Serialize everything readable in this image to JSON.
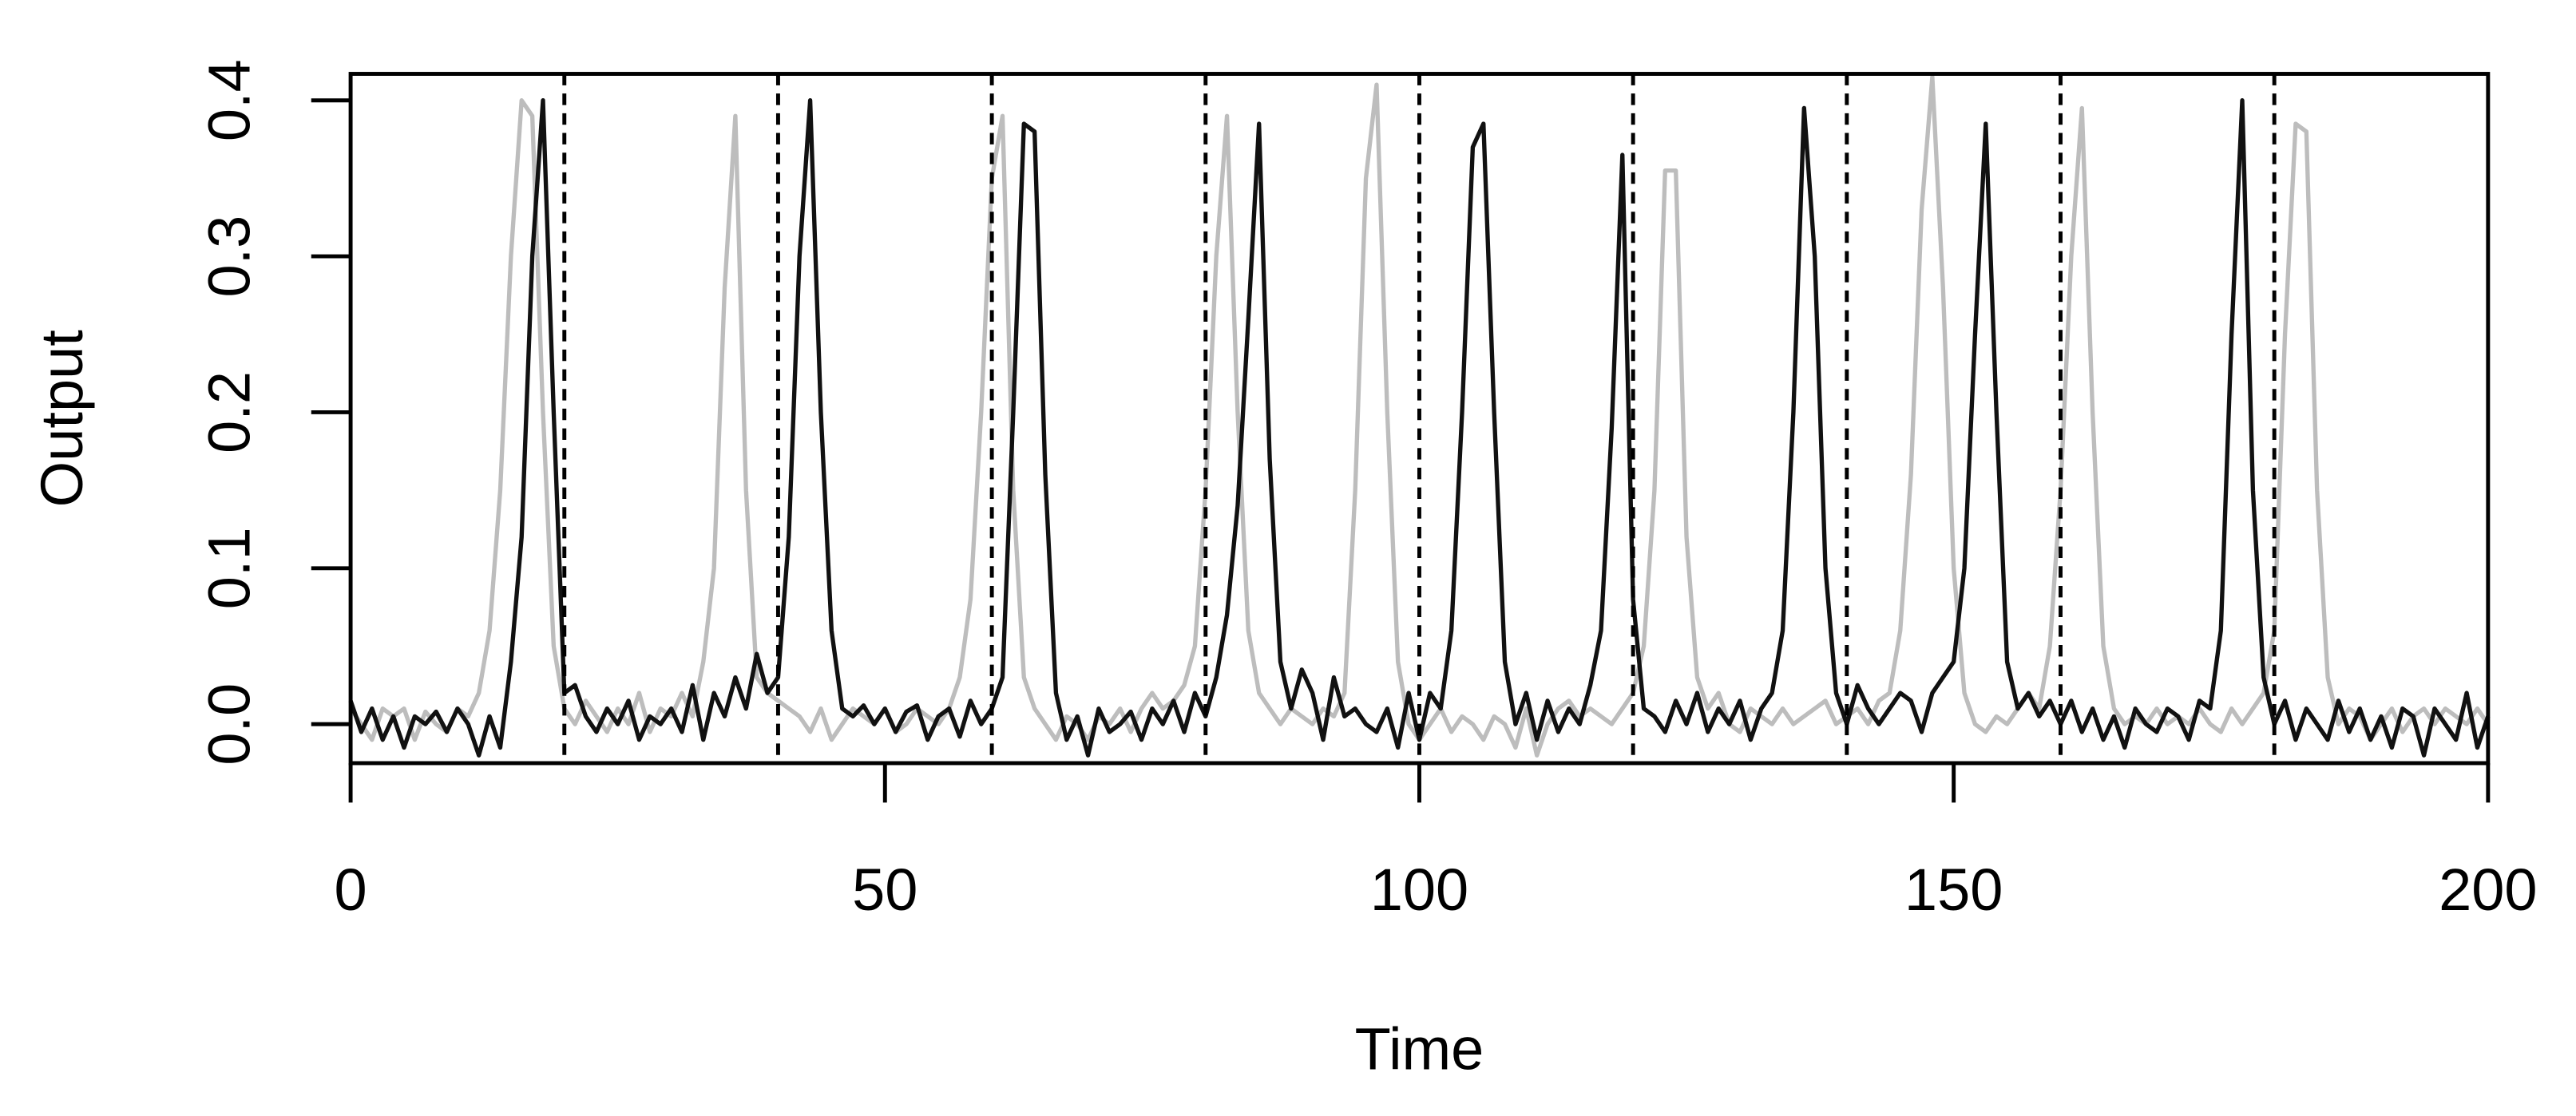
{
  "chart_data": {
    "type": "line",
    "x_label": "Time",
    "y_label": "Output",
    "x": [
      0,
      1,
      2,
      3,
      4,
      5,
      6,
      7,
      8,
      9,
      10,
      11,
      12,
      13,
      14,
      15,
      16,
      17,
      18,
      19,
      20,
      21,
      22,
      23,
      24,
      25,
      26,
      27,
      28,
      29,
      30,
      31,
      32,
      33,
      34,
      35,
      36,
      37,
      38,
      39,
      40,
      41,
      42,
      43,
      44,
      45,
      46,
      47,
      48,
      49,
      50,
      51,
      52,
      53,
      54,
      55,
      56,
      57,
      58,
      59,
      60,
      61,
      62,
      63,
      64,
      65,
      66,
      67,
      68,
      69,
      70,
      71,
      72,
      73,
      74,
      75,
      76,
      77,
      78,
      79,
      80,
      81,
      82,
      83,
      84,
      85,
      86,
      87,
      88,
      89,
      90,
      91,
      92,
      93,
      94,
      95,
      96,
      97,
      98,
      99,
      100,
      101,
      102,
      103,
      104,
      105,
      106,
      107,
      108,
      109,
      110,
      111,
      112,
      113,
      114,
      115,
      116,
      117,
      118,
      119,
      120,
      121,
      122,
      123,
      124,
      125,
      126,
      127,
      128,
      129,
      130,
      131,
      132,
      133,
      134,
      135,
      136,
      137,
      138,
      139,
      140,
      141,
      142,
      143,
      144,
      145,
      146,
      147,
      148,
      149,
      150,
      151,
      152,
      153,
      154,
      155,
      156,
      157,
      158,
      159,
      160,
      161,
      162,
      163,
      164,
      165,
      166,
      167,
      168,
      169,
      170,
      171,
      172,
      173,
      174,
      175,
      176,
      177,
      178,
      179,
      180,
      181,
      182,
      183,
      184,
      185,
      186,
      187,
      188,
      189,
      190,
      191,
      192,
      193,
      194,
      195,
      196,
      197,
      198,
      199,
      200
    ],
    "series": [
      {
        "color": "#bdbdbd",
        "values": [
          0.01,
          0.0,
          -0.01,
          0.01,
          0.005,
          0.01,
          -0.01,
          0.008,
          0.0,
          -0.005,
          0.01,
          0.005,
          0.02,
          0.06,
          0.15,
          0.3,
          0.4,
          0.39,
          0.2,
          0.05,
          0.01,
          0.0,
          0.015,
          0.005,
          -0.005,
          0.01,
          0.0,
          0.02,
          -0.005,
          0.01,
          0.005,
          0.02,
          0.005,
          0.04,
          0.1,
          0.28,
          0.39,
          0.15,
          0.03,
          0.02,
          0.015,
          0.01,
          0.005,
          -0.005,
          0.01,
          -0.01,
          0.0,
          0.01,
          0.005,
          0.0,
          0.01,
          -0.005,
          0.0,
          0.01,
          0.005,
          0.0,
          0.01,
          0.03,
          0.08,
          0.2,
          0.35,
          0.39,
          0.15,
          0.03,
          0.01,
          0.0,
          -0.01,
          0.005,
          0.0,
          -0.01,
          0.005,
          0.0,
          0.01,
          -0.005,
          0.01,
          0.02,
          0.01,
          0.015,
          0.025,
          0.05,
          0.15,
          0.3,
          0.39,
          0.2,
          0.06,
          0.02,
          0.01,
          0.0,
          0.01,
          0.005,
          0.0,
          0.01,
          0.005,
          0.02,
          0.15,
          0.35,
          0.41,
          0.2,
          0.04,
          0.0,
          -0.01,
          0.0,
          0.01,
          -0.005,
          0.005,
          0.0,
          -0.01,
          0.005,
          0.0,
          -0.015,
          0.01,
          -0.02,
          0.0,
          0.01,
          0.015,
          0.005,
          0.01,
          0.005,
          0.0,
          0.01,
          0.02,
          0.05,
          0.15,
          0.355,
          0.355,
          0.12,
          0.03,
          0.01,
          0.02,
          0.0,
          -0.005,
          0.01,
          0.005,
          0.0,
          0.01,
          0.0,
          0.005,
          0.01,
          0.015,
          0.0,
          0.005,
          0.01,
          0.0,
          0.015,
          0.02,
          0.06,
          0.16,
          0.33,
          0.415,
          0.28,
          0.1,
          0.02,
          0.0,
          -0.005,
          0.005,
          0.0,
          0.01,
          0.02,
          0.01,
          0.05,
          0.15,
          0.3,
          0.395,
          0.2,
          0.05,
          0.01,
          0.0,
          0.005,
          0.0,
          0.01,
          0.0,
          0.005,
          0.0,
          0.01,
          0.0,
          -0.005,
          0.01,
          0.0,
          0.01,
          0.02,
          0.06,
          0.25,
          0.385,
          0.38,
          0.15,
          0.03,
          0.0,
          0.01,
          0.005,
          -0.01,
          0.0,
          0.01,
          -0.005,
          0.005,
          0.01,
          0.0,
          0.01,
          0.005,
          0.0,
          0.01,
          0.0
        ]
      },
      {
        "color": "#111111",
        "values": [
          0.015,
          -0.005,
          0.01,
          -0.01,
          0.005,
          -0.015,
          0.005,
          0.0,
          0.008,
          -0.005,
          0.01,
          0.0,
          -0.02,
          0.005,
          -0.015,
          0.04,
          0.12,
          0.3,
          0.4,
          0.2,
          0.02,
          0.025,
          0.005,
          -0.005,
          0.01,
          0.0,
          0.015,
          -0.01,
          0.005,
          0.0,
          0.01,
          -0.005,
          0.025,
          -0.01,
          0.02,
          0.005,
          0.03,
          0.01,
          0.045,
          0.02,
          0.03,
          0.12,
          0.3,
          0.4,
          0.2,
          0.06,
          0.01,
          0.005,
          0.012,
          0.0,
          0.01,
          -0.005,
          0.008,
          0.012,
          -0.01,
          0.005,
          0.01,
          -0.008,
          0.015,
          0.0,
          0.01,
          0.03,
          0.2,
          0.385,
          0.38,
          0.16,
          0.02,
          -0.01,
          0.005,
          -0.02,
          0.01,
          -0.005,
          0.0,
          0.008,
          -0.01,
          0.01,
          0.0,
          0.015,
          -0.005,
          0.02,
          0.005,
          0.03,
          0.07,
          0.14,
          0.26,
          0.385,
          0.17,
          0.04,
          0.01,
          0.035,
          0.02,
          -0.01,
          0.03,
          0.005,
          0.01,
          0.0,
          -0.005,
          0.01,
          -0.015,
          0.02,
          -0.01,
          0.02,
          0.01,
          0.06,
          0.2,
          0.37,
          0.385,
          0.2,
          0.04,
          0.0,
          0.02,
          -0.01,
          0.015,
          -0.005,
          0.01,
          0.0,
          0.025,
          0.06,
          0.19,
          0.365,
          0.08,
          0.01,
          0.005,
          -0.005,
          0.015,
          0.0,
          0.02,
          -0.005,
          0.01,
          0.0,
          0.015,
          -0.01,
          0.01,
          0.02,
          0.06,
          0.2,
          0.395,
          0.3,
          0.1,
          0.02,
          0.0,
          0.025,
          0.01,
          0.0,
          0.01,
          0.02,
          0.015,
          -0.005,
          0.02,
          0.03,
          0.04,
          0.1,
          0.25,
          0.385,
          0.2,
          0.04,
          0.01,
          0.02,
          0.005,
          0.015,
          0.0,
          0.015,
          -0.005,
          0.01,
          -0.01,
          0.005,
          -0.015,
          0.01,
          0.0,
          -0.005,
          0.01,
          0.005,
          -0.01,
          0.015,
          0.01,
          0.06,
          0.25,
          0.4,
          0.15,
          0.03,
          0.0,
          0.015,
          -0.01,
          0.01,
          0.0,
          -0.01,
          0.015,
          -0.005,
          0.01,
          -0.01,
          0.005,
          -0.015,
          0.01,
          0.005,
          -0.02,
          0.01,
          0.0,
          -0.01,
          0.02,
          -0.015,
          0.005
        ]
      }
    ],
    "vlines": [
      20,
      40,
      60,
      80,
      100,
      120,
      140,
      160,
      180
    ],
    "xlim": [
      0,
      200
    ],
    "xticks": [
      0,
      50,
      100,
      150,
      200
    ],
    "ylim": [
      -0.025,
      0.417
    ],
    "yticks": [
      {
        "value": 0,
        "label": "0.0"
      },
      0.1,
      0.2,
      0.3,
      0.4
    ]
  }
}
